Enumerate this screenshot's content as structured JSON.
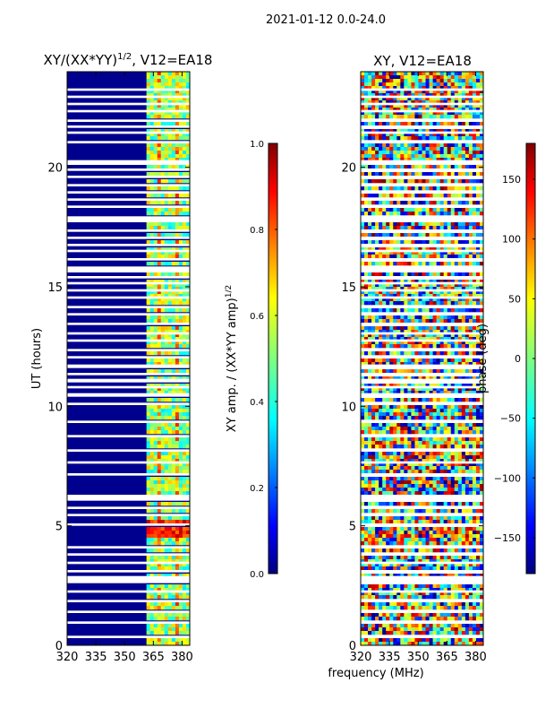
{
  "figure": {
    "suptitle": "2021-01-12 0.0-24.0",
    "xlabel": "frequency (MHz)"
  },
  "colors": {
    "jet": [
      "#00007f",
      "#0000ff",
      "#007fff",
      "#00ffff",
      "#7fff7f",
      "#ffff00",
      "#ff7f00",
      "#ff0000",
      "#7f0000"
    ],
    "flag": "#ffffff",
    "low_amp": "#00008f"
  },
  "chart_data": [
    {
      "type": "heatmap",
      "title_main": "XY/(XX*YY)",
      "title_sup": "1/2",
      "title_tail": ", V12=EA18",
      "ylabel": "UT (hours)",
      "xlim": [
        320,
        384
      ],
      "ylim": [
        0,
        24
      ],
      "xticks": [
        "320",
        "335",
        "350",
        "365",
        "380"
      ],
      "xtick_values": [
        320,
        335,
        350,
        365,
        380
      ],
      "yticks": [
        "0",
        "5",
        "10",
        "15",
        "20"
      ],
      "ytick_values": [
        0,
        5,
        10,
        15,
        20
      ],
      "colorbar": {
        "label": "XY amp. / (XX*YY amp)",
        "label_sup": "1/2",
        "range": [
          0.0,
          1.0
        ],
        "ticks": [
          "0.0",
          "0.2",
          "0.4",
          "0.6",
          "0.8",
          "1.0"
        ],
        "tick_values": [
          0.0,
          0.2,
          0.4,
          0.6,
          0.8,
          1.0
        ]
      }
    },
    {
      "type": "heatmap",
      "title": "XY, V12=EA18",
      "xlim": [
        320,
        384
      ],
      "ylim": [
        0,
        24
      ],
      "xticks": [
        "320",
        "335",
        "350",
        "365",
        "380"
      ],
      "xtick_values": [
        320,
        335,
        350,
        365,
        380
      ],
      "yticks": [
        "0",
        "5",
        "10",
        "15",
        "20"
      ],
      "ytick_values": [
        0,
        5,
        10,
        15,
        20
      ],
      "colorbar": {
        "label": "phase (deg)",
        "range": [
          -180,
          180
        ],
        "ticks": [
          "−150",
          "−100",
          "−50",
          "0",
          "50",
          "100",
          "150"
        ],
        "tick_values": [
          -150,
          -100,
          -50,
          0,
          50,
          100,
          150
        ]
      }
    }
  ],
  "flagged_hours": [
    [
      0.3,
      0.4
    ],
    [
      0.9,
      1.0
    ],
    [
      1.35,
      1.45
    ],
    [
      1.8,
      1.9
    ],
    [
      2.2,
      2.3
    ],
    [
      2.6,
      2.9
    ],
    [
      3.05,
      3.15
    ],
    [
      3.4,
      3.5
    ],
    [
      3.75,
      3.85
    ],
    [
      4.05,
      4.15
    ],
    [
      5.0,
      5.1
    ],
    [
      5.4,
      5.5
    ],
    [
      5.7,
      5.8
    ],
    [
      6.05,
      6.3
    ],
    [
      7.1,
      7.2
    ],
    [
      7.6,
      7.7
    ],
    [
      8.1,
      8.2
    ],
    [
      8.7,
      8.8
    ],
    [
      9.3,
      9.4
    ],
    [
      10.05,
      10.15
    ],
    [
      10.4,
      10.55
    ],
    [
      10.75,
      10.85
    ],
    [
      11.0,
      11.15
    ],
    [
      11.3,
      11.4
    ],
    [
      11.6,
      11.75
    ],
    [
      12.0,
      12.1
    ],
    [
      12.3,
      12.4
    ],
    [
      12.7,
      12.8
    ],
    [
      13.0,
      13.1
    ],
    [
      13.4,
      13.5
    ],
    [
      13.8,
      13.9
    ],
    [
      14.1,
      14.2
    ],
    [
      14.5,
      14.6
    ],
    [
      14.8,
      14.9
    ],
    [
      15.1,
      15.2
    ],
    [
      15.35,
      15.45
    ],
    [
      15.6,
      15.85
    ],
    [
      16.1,
      16.2
    ],
    [
      16.45,
      16.55
    ],
    [
      16.7,
      16.8
    ],
    [
      17.0,
      17.1
    ],
    [
      17.3,
      17.4
    ],
    [
      17.7,
      17.95
    ],
    [
      18.3,
      18.4
    ],
    [
      18.6,
      18.7
    ],
    [
      18.9,
      19.0
    ],
    [
      19.2,
      19.3
    ],
    [
      19.55,
      19.65
    ],
    [
      19.85,
      19.95
    ],
    [
      20.1,
      20.3
    ],
    [
      21.0,
      21.1
    ],
    [
      21.4,
      21.5
    ],
    [
      21.65,
      21.75
    ],
    [
      21.9,
      22.0
    ],
    [
      22.3,
      22.4
    ],
    [
      22.6,
      22.7
    ],
    [
      22.9,
      23.0
    ],
    [
      23.2,
      23.3
    ]
  ]
}
